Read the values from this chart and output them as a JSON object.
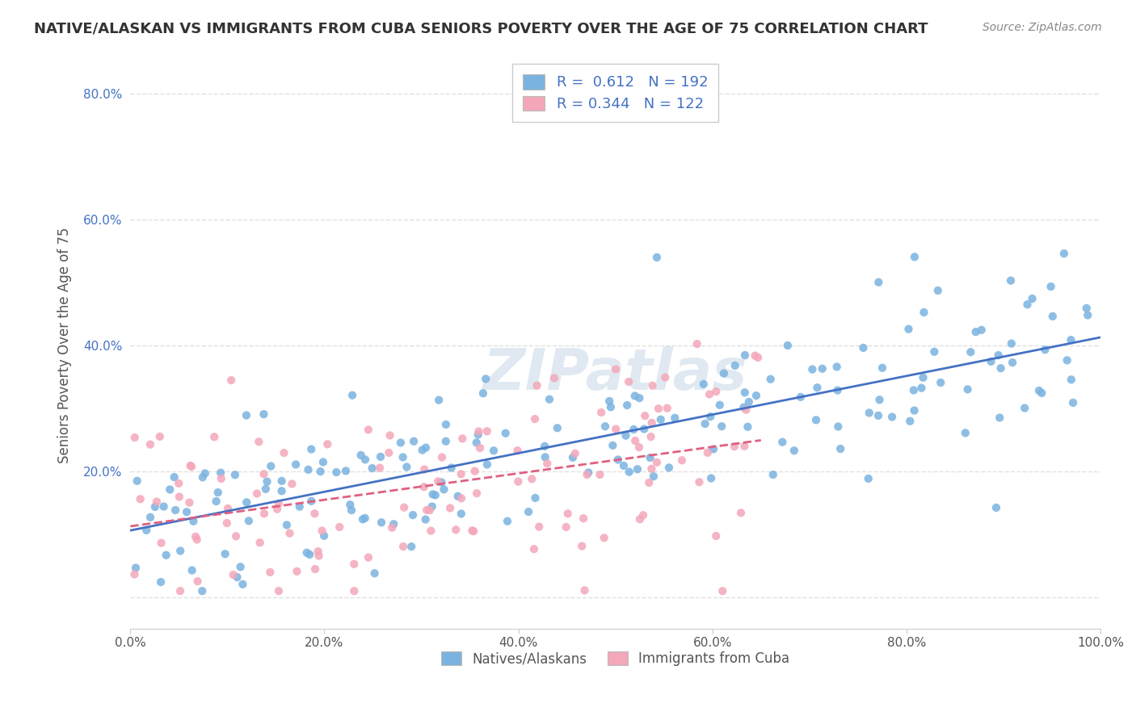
{
  "title": "NATIVE/ALASKAN VS IMMIGRANTS FROM CUBA SENIORS POVERTY OVER THE AGE OF 75 CORRELATION CHART",
  "source": "Source: ZipAtlas.com",
  "ylabel": "Seniors Poverty Over the Age of 75",
  "legend_label1": "Natives/Alaskans",
  "legend_label2": "Immigrants from Cuba",
  "R1": "0.612",
  "N1": "192",
  "R2": "0.344",
  "N2": "122",
  "color_blue": "#7ab3e0",
  "color_pink": "#f4a7b9",
  "line_blue": "#4472c4",
  "line_pink": "#e06080",
  "watermark_color": "#c8d8e8",
  "title_color": "#333333",
  "source_color": "#888888",
  "background_color": "#ffffff",
  "grid_color": "#e0e0e0",
  "xlim": [
    0.0,
    1.0
  ],
  "ylim": [
    -0.05,
    0.85
  ],
  "seed_blue": 42,
  "seed_pink": 99
}
